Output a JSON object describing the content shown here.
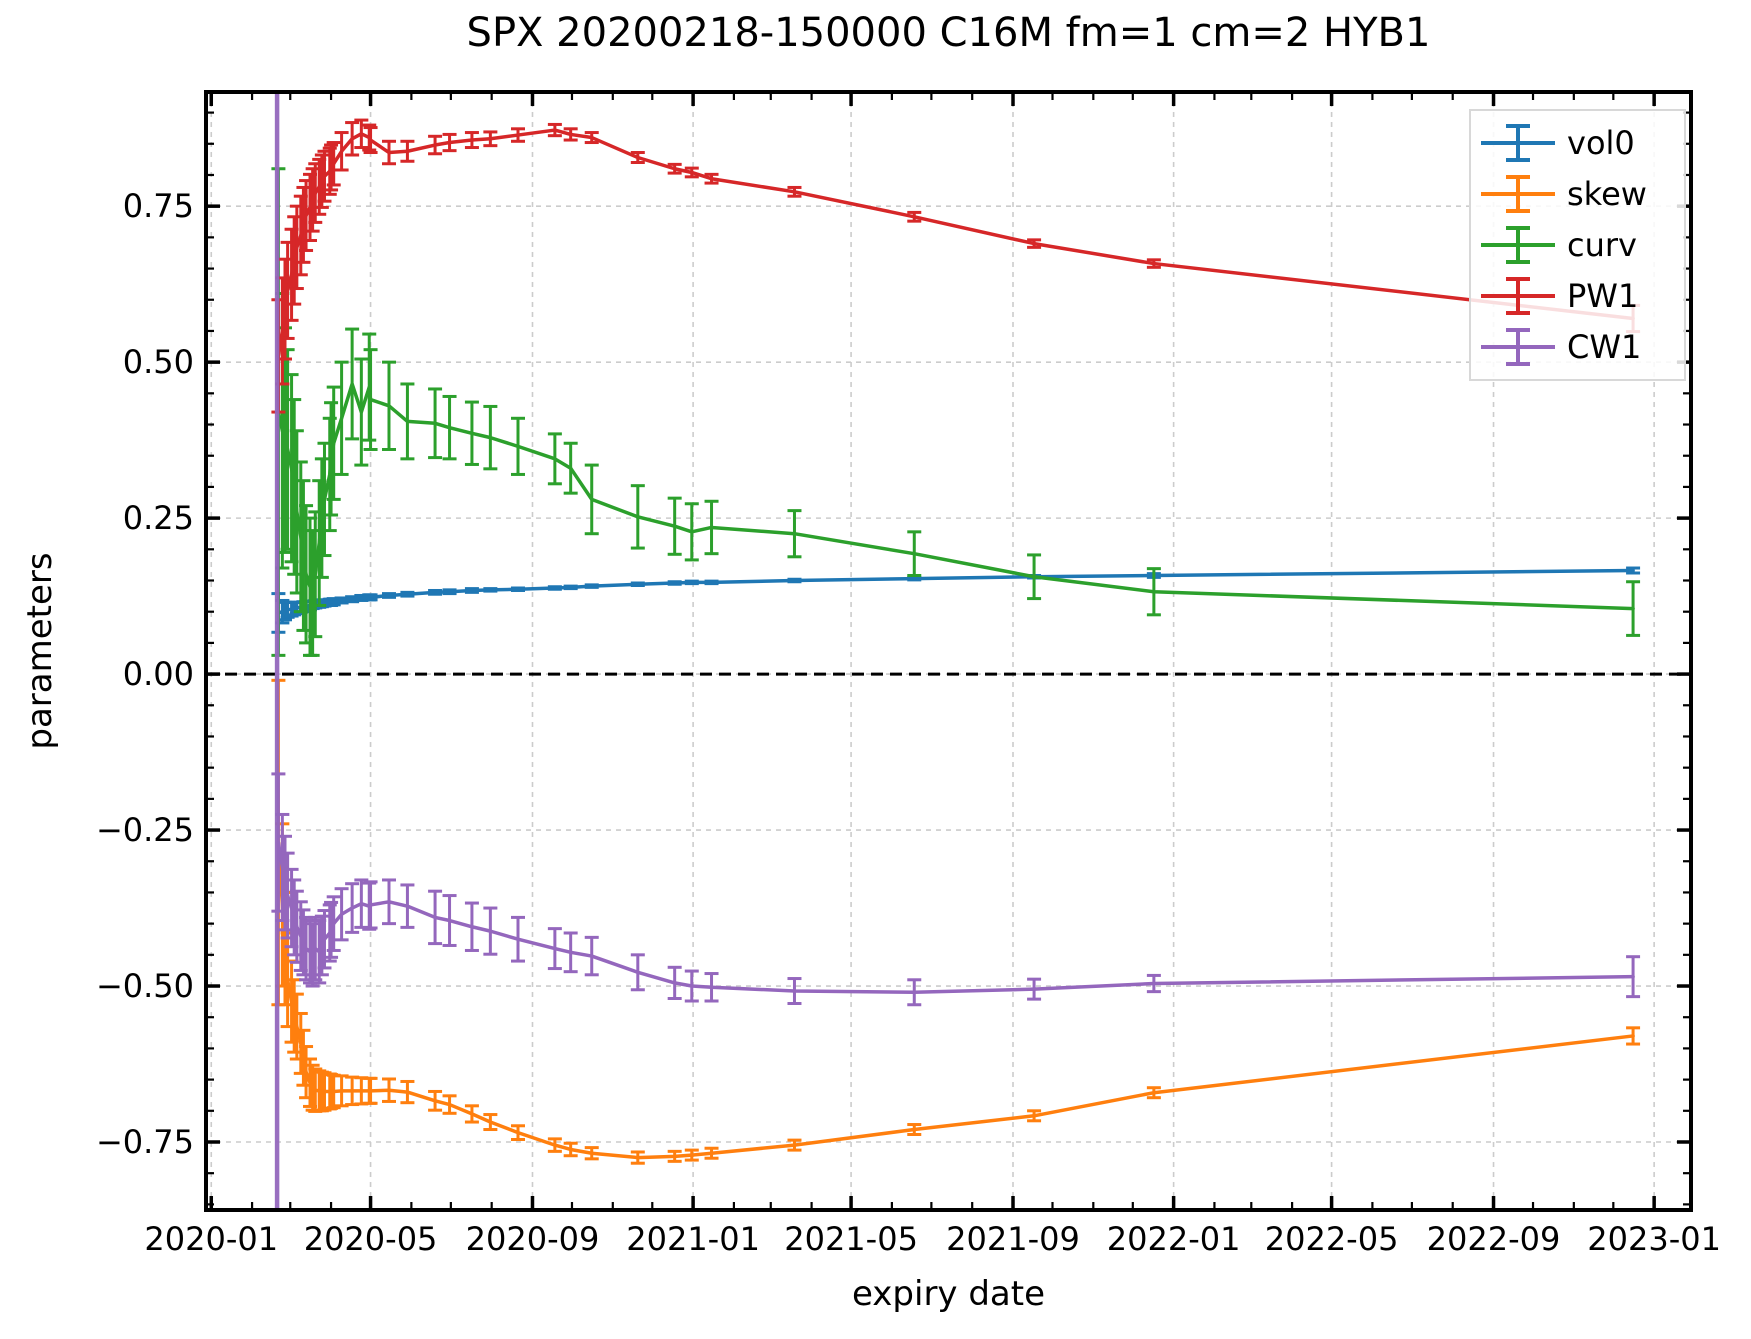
{
  "chart_data": {
    "type": "line",
    "title": "SPX 20200218-150000 C16M fm=1 cm=2 HYB1",
    "xlabel": "expiry date",
    "ylabel": "parameters",
    "grid": true,
    "legend_position": "upper right",
    "xlim": [
      "2019-12-28",
      "2023-01-29"
    ],
    "ylim": [
      -0.859,
      0.933
    ],
    "x_ticks": [
      {
        "date": "2020-01-01",
        "label": "2020-01"
      },
      {
        "date": "2020-05-01",
        "label": "2020-05"
      },
      {
        "date": "2020-09-01",
        "label": "2020-09"
      },
      {
        "date": "2021-01-01",
        "label": "2021-01"
      },
      {
        "date": "2021-05-01",
        "label": "2021-05"
      },
      {
        "date": "2021-09-01",
        "label": "2021-09"
      },
      {
        "date": "2022-01-01",
        "label": "2022-01"
      },
      {
        "date": "2022-05-01",
        "label": "2022-05"
      },
      {
        "date": "2022-09-01",
        "label": "2022-09"
      },
      {
        "date": "2023-01-01",
        "label": "2023-01"
      }
    ],
    "y_ticks": [
      {
        "value": -0.75,
        "label": "−0.75"
      },
      {
        "value": -0.5,
        "label": "−0.50"
      },
      {
        "value": -0.25,
        "label": "−0.25"
      },
      {
        "value": 0.0,
        "label": "0.00"
      },
      {
        "value": 0.25,
        "label": "0.25"
      },
      {
        "value": 0.5,
        "label": "0.50"
      },
      {
        "value": 0.75,
        "label": "0.75"
      }
    ],
    "x_minor_step_months": 1,
    "y_minor_step": 0.05,
    "zero_line": {
      "value": 0.0,
      "color": "#000000",
      "style": "dashed"
    },
    "vline": {
      "date": "2020-02-20",
      "color": "#9467bd"
    },
    "x": [
      "2020-02-21",
      "2020-02-24",
      "2020-02-26",
      "2020-02-28",
      "2020-03-02",
      "2020-03-04",
      "2020-03-06",
      "2020-03-09",
      "2020-03-11",
      "2020-03-13",
      "2020-03-16",
      "2020-03-18",
      "2020-03-20",
      "2020-03-23",
      "2020-03-25",
      "2020-03-27",
      "2020-03-31",
      "2020-04-01",
      "2020-04-03",
      "2020-04-09",
      "2020-04-17",
      "2020-04-24",
      "2020-04-30",
      "2020-05-01",
      "2020-05-15",
      "2020-05-29",
      "2020-06-19",
      "2020-06-30",
      "2020-07-17",
      "2020-07-31",
      "2020-08-21",
      "2020-09-18",
      "2020-09-30",
      "2020-10-16",
      "2020-11-20",
      "2020-12-18",
      "2020-12-31",
      "2021-01-15",
      "2021-03-19",
      "2021-06-18",
      "2021-09-17",
      "2021-12-17",
      "2022-12-16"
    ],
    "series": [
      {
        "name": "vol0",
        "color": "#1f77b4",
        "values": [
          0.098,
          0.1,
          0.101,
          0.103,
          0.104,
          0.105,
          0.106,
          0.107,
          0.108,
          0.109,
          0.11,
          0.111,
          0.112,
          0.113,
          0.113,
          0.114,
          0.115,
          0.115,
          0.116,
          0.118,
          0.12,
          0.122,
          0.123,
          0.123,
          0.126,
          0.128,
          0.131,
          0.132,
          0.134,
          0.135,
          0.136,
          0.138,
          0.139,
          0.141,
          0.144,
          0.146,
          0.147,
          0.147,
          0.15,
          0.153,
          0.156,
          0.158,
          0.166
        ],
        "errors": [
          0.031,
          0.018,
          0.014,
          0.012,
          0.011,
          0.01,
          0.009,
          0.008,
          0.008,
          0.007,
          0.007,
          0.006,
          0.006,
          0.006,
          0.005,
          0.005,
          0.005,
          0.005,
          0.005,
          0.004,
          0.004,
          0.004,
          0.004,
          0.004,
          0.003,
          0.003,
          0.003,
          0.003,
          0.003,
          0.002,
          0.002,
          0.002,
          0.002,
          0.002,
          0.002,
          0.002,
          0.002,
          0.002,
          0.002,
          0.002,
          0.002,
          0.003,
          0.004
        ]
      },
      {
        "name": "skew",
        "color": "#ff7f0e",
        "values": [
          -0.27,
          -0.37,
          -0.44,
          -0.49,
          -0.525,
          -0.548,
          -0.565,
          -0.592,
          -0.615,
          -0.638,
          -0.655,
          -0.663,
          -0.667,
          -0.668,
          -0.669,
          -0.669,
          -0.669,
          -0.669,
          -0.669,
          -0.668,
          -0.668,
          -0.668,
          -0.668,
          -0.668,
          -0.667,
          -0.67,
          -0.684,
          -0.69,
          -0.705,
          -0.718,
          -0.735,
          -0.755,
          -0.762,
          -0.768,
          -0.775,
          -0.773,
          -0.771,
          -0.768,
          -0.755,
          -0.73,
          -0.708,
          -0.671,
          -0.58
        ],
        "errors": [
          0.26,
          0.13,
          0.09,
          0.075,
          0.065,
          0.058,
          0.052,
          0.048,
          0.044,
          0.041,
          0.038,
          0.036,
          0.034,
          0.032,
          0.031,
          0.03,
          0.028,
          0.027,
          0.026,
          0.024,
          0.022,
          0.021,
          0.02,
          0.02,
          0.018,
          0.017,
          0.015,
          0.014,
          0.013,
          0.012,
          0.011,
          0.01,
          0.01,
          0.009,
          0.009,
          0.008,
          0.008,
          0.008,
          0.008,
          0.008,
          0.008,
          0.008,
          0.013
        ]
      },
      {
        "name": "curv",
        "color": "#2ca02c",
        "values": [
          0.42,
          0.39,
          0.375,
          0.36,
          0.33,
          0.3,
          0.26,
          0.22,
          0.19,
          0.16,
          0.14,
          0.13,
          0.16,
          0.21,
          0.25,
          0.28,
          0.32,
          0.345,
          0.37,
          0.41,
          0.465,
          0.42,
          0.46,
          0.44,
          0.43,
          0.405,
          0.402,
          0.395,
          0.386,
          0.379,
          0.365,
          0.345,
          0.33,
          0.28,
          0.252,
          0.237,
          0.228,
          0.235,
          0.225,
          0.193,
          0.156,
          0.132,
          0.105
        ],
        "errors": [
          0.39,
          0.22,
          0.18,
          0.16,
          0.15,
          0.14,
          0.13,
          0.12,
          0.12,
          0.11,
          0.11,
          0.1,
          0.1,
          0.1,
          0.095,
          0.09,
          0.09,
          0.09,
          0.09,
          0.09,
          0.088,
          0.085,
          0.085,
          0.08,
          0.07,
          0.06,
          0.055,
          0.05,
          0.05,
          0.05,
          0.045,
          0.04,
          0.04,
          0.055,
          0.05,
          0.045,
          0.045,
          0.042,
          0.037,
          0.035,
          0.035,
          0.037,
          0.043
        ]
      },
      {
        "name": "PW1",
        "color": "#d62728",
        "values": [
          0.51,
          0.55,
          0.585,
          0.615,
          0.64,
          0.663,
          0.684,
          0.703,
          0.72,
          0.735,
          0.748,
          0.76,
          0.771,
          0.781,
          0.79,
          0.798,
          0.806,
          0.812,
          0.818,
          0.838,
          0.858,
          0.866,
          0.86,
          0.856,
          0.836,
          0.838,
          0.848,
          0.852,
          0.856,
          0.858,
          0.864,
          0.872,
          0.865,
          0.86,
          0.828,
          0.81,
          0.804,
          0.794,
          0.773,
          0.733,
          0.69,
          0.658,
          0.57
        ],
        "errors": [
          0.09,
          0.085,
          0.08,
          0.077,
          0.073,
          0.07,
          0.066,
          0.063,
          0.06,
          0.056,
          0.053,
          0.05,
          0.047,
          0.044,
          0.042,
          0.04,
          0.037,
          0.036,
          0.034,
          0.03,
          0.026,
          0.022,
          0.02,
          0.02,
          0.018,
          0.016,
          0.014,
          0.013,
          0.012,
          0.011,
          0.01,
          0.009,
          0.009,
          0.008,
          0.008,
          0.007,
          0.007,
          0.007,
          0.007,
          0.007,
          0.006,
          0.006,
          0.021
        ]
      },
      {
        "name": "CW1",
        "color": "#9467bd",
        "values": [
          -0.27,
          -0.31,
          -0.335,
          -0.355,
          -0.375,
          -0.39,
          -0.405,
          -0.42,
          -0.43,
          -0.44,
          -0.445,
          -0.45,
          -0.44,
          -0.445,
          -0.435,
          -0.425,
          -0.415,
          -0.41,
          -0.4,
          -0.385,
          -0.375,
          -0.368,
          -0.372,
          -0.37,
          -0.365,
          -0.372,
          -0.39,
          -0.395,
          -0.405,
          -0.412,
          -0.425,
          -0.44,
          -0.446,
          -0.452,
          -0.478,
          -0.495,
          -0.5,
          -0.502,
          -0.508,
          -0.51,
          -0.505,
          -0.496,
          -0.485
        ],
        "errors": [
          0.11,
          0.085,
          0.075,
          0.068,
          0.062,
          0.06,
          0.057,
          0.055,
          0.052,
          0.05,
          0.05,
          0.05,
          0.05,
          0.05,
          0.047,
          0.046,
          0.045,
          0.044,
          0.043,
          0.041,
          0.039,
          0.038,
          0.037,
          0.037,
          0.035,
          0.034,
          0.042,
          0.04,
          0.038,
          0.037,
          0.035,
          0.032,
          0.031,
          0.03,
          0.028,
          0.025,
          0.024,
          0.022,
          0.02,
          0.02,
          0.016,
          0.013,
          0.032
        ]
      }
    ]
  }
}
